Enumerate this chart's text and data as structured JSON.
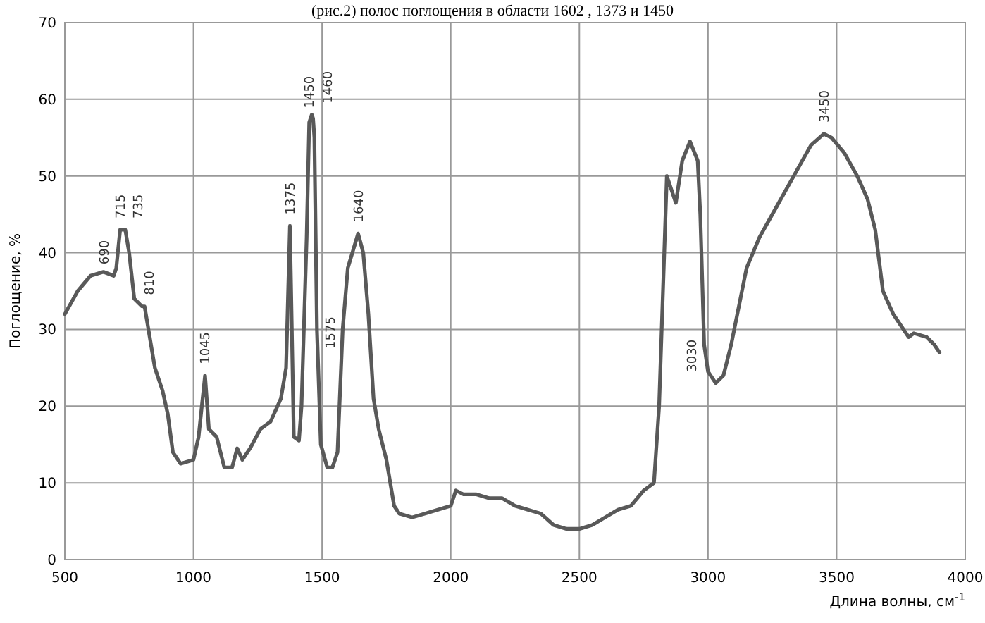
{
  "chart_data": {
    "type": "line",
    "xlabel": "Длина волны, см$^{-1}$",
    "ylabel": "Поглощение, %",
    "xlim": [
      500,
      4000
    ],
    "xticks": [
      500,
      1000,
      1500,
      2000,
      2500,
      3000,
      3500,
      4000
    ],
    "ylim": [
      0,
      70
    ],
    "yticks": [
      0,
      10,
      20,
      30,
      40,
      50,
      60,
      70
    ],
    "grid": true,
    "marker": "none",
    "line_style": "solid",
    "series": [
      {
        "color": "#595959",
        "x": [
          500,
          550,
          600,
          650,
          690,
          700,
          715,
          735,
          750,
          770,
          800,
          810,
          830,
          850,
          880,
          900,
          920,
          950,
          1000,
          1020,
          1045,
          1060,
          1090,
          1120,
          1150,
          1170,
          1190,
          1220,
          1260,
          1300,
          1340,
          1360,
          1375,
          1390,
          1410,
          1420,
          1440,
          1450,
          1455,
          1460,
          1465,
          1470,
          1480,
          1495,
          1520,
          1540,
          1560,
          1575,
          1580,
          1600,
          1640,
          1660,
          1680,
          1700,
          1720,
          1750,
          1780,
          1800,
          1850,
          1900,
          1950,
          2000,
          2020,
          2050,
          2100,
          2150,
          2200,
          2250,
          2300,
          2350,
          2400,
          2450,
          2500,
          2550,
          2600,
          2650,
          2700,
          2750,
          2790,
          2810,
          2840,
          2860,
          2875,
          2900,
          2930,
          2960,
          2970,
          2985,
          3000,
          3030,
          3060,
          3090,
          3120,
          3150,
          3200,
          3250,
          3300,
          3350,
          3400,
          3450,
          3480,
          3530,
          3580,
          3620,
          3650,
          3680,
          3720,
          3760,
          3780,
          3800,
          3850,
          3880,
          3900
        ],
        "values": [
          32,
          35,
          37,
          37.5,
          37,
          38,
          43,
          43,
          40,
          34,
          33,
          33,
          29,
          25,
          22,
          19,
          14,
          12.5,
          13,
          16,
          24,
          17,
          16,
          12,
          12,
          14.5,
          13,
          14.5,
          17,
          18,
          21,
          25,
          43.5,
          16,
          15.5,
          20,
          42,
          57,
          57.5,
          58,
          57.5,
          55,
          30,
          15,
          12,
          12,
          14,
          26,
          30,
          38,
          42.5,
          40,
          32,
          21,
          17,
          13,
          7,
          6,
          5.5,
          6,
          6.5,
          7,
          9,
          8.5,
          8.5,
          8,
          8,
          7,
          6.5,
          6,
          4.5,
          4,
          4,
          4.5,
          5.5,
          6.5,
          7,
          9,
          10,
          20,
          50,
          48,
          46.5,
          52,
          54.5,
          52,
          45,
          28,
          24.5,
          23,
          24,
          28,
          33,
          38,
          42,
          45,
          48,
          51,
          54,
          55.5,
          55,
          53,
          50,
          47,
          43,
          35,
          32,
          30,
          29,
          29.5,
          29,
          28,
          27
        ]
      }
    ],
    "annotations": [
      "(рис.2) полос поглощения в области 1602 , 1373 и 1450",
      {
        "text": "690",
        "x": 690,
        "y": 37
      },
      {
        "text": "715",
        "x": 715,
        "y": 43
      },
      {
        "text": "735",
        "x": 735,
        "y": 43
      },
      {
        "text": "810",
        "x": 810,
        "y": 33
      },
      {
        "text": "1045",
        "x": 1045,
        "y": 24
      },
      {
        "text": "1375",
        "x": 1375,
        "y": 43.5
      },
      {
        "text": "1450",
        "x": 1450,
        "y": 57
      },
      {
        "text": "1460",
        "x": 1460,
        "y": 58
      },
      {
        "text": "1575",
        "x": 1575,
        "y": 26
      },
      {
        "text": "1640",
        "x": 1640,
        "y": 42.5
      },
      {
        "text": "3030",
        "x": 3030,
        "y": 23
      },
      {
        "text": "3450",
        "x": 3450,
        "y": 55.5
      }
    ]
  }
}
